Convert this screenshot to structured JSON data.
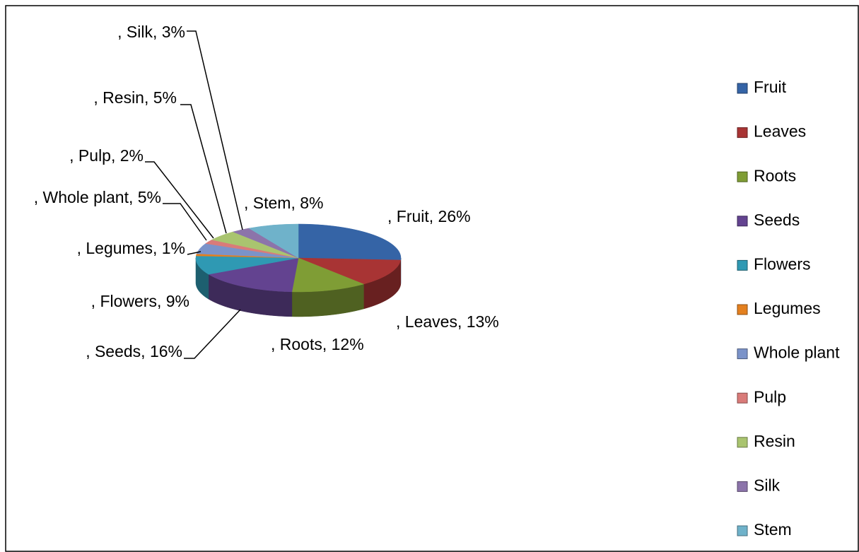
{
  "chart_data": {
    "type": "pie",
    "three_d": true,
    "categories": [
      "Fruit",
      "Leaves",
      "Roots",
      "Seeds",
      "Flowers",
      "Legumes",
      "Whole plant",
      "Pulp",
      "Resin",
      "Silk",
      "Stem"
    ],
    "values": [
      26,
      13,
      12,
      16,
      9,
      1,
      5,
      2,
      5,
      3,
      8
    ],
    "value_labels": [
      ", Fruit, 26%",
      ", Leaves, 13%",
      ", Roots, 12%",
      ", Seeds, 16%",
      ", Flowers, 9%",
      ", Legumes, 1%",
      ", Whole plant, 5%",
      ", Pulp, 2%",
      ", Resin, 5%",
      ", Silk, 3%",
      ", Stem, 8%"
    ],
    "colors": [
      "#3564a6",
      "#a83434",
      "#7f9d35",
      "#634390",
      "#2f99b3",
      "#e4801f",
      "#7b93c9",
      "#d97b79",
      "#a9c46f",
      "#8c74aa",
      "#6fb2ca"
    ],
    "legend": "right"
  }
}
